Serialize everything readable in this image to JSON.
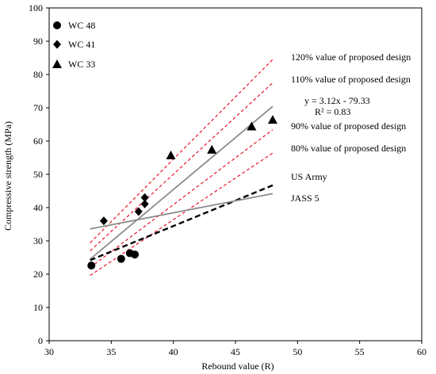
{
  "chart_data": {
    "type": "scatter",
    "title": "",
    "xlabel": "Rebound value (R)",
    "ylabel": "Compressive strength (MPa)",
    "xlim": [
      30,
      60
    ],
    "ylim": [
      0,
      100
    ],
    "xticks": [
      30,
      35,
      40,
      45,
      50,
      55,
      60
    ],
    "yticks": [
      0,
      10,
      20,
      30,
      40,
      50,
      60,
      70,
      80,
      90,
      100
    ],
    "grid": false,
    "legend_position": "top-left",
    "series": [
      {
        "name": "WC 48",
        "marker": "circle",
        "color": "#000000",
        "points": [
          [
            33.4,
            22.6
          ],
          [
            35.8,
            24.6
          ],
          [
            36.5,
            26.3
          ],
          [
            36.9,
            25.9
          ]
        ]
      },
      {
        "name": "WC 41",
        "marker": "diamond",
        "color": "#000000",
        "points": [
          [
            34.4,
            36.0
          ],
          [
            37.2,
            38.8
          ],
          [
            37.7,
            41.1
          ],
          [
            37.7,
            43.0
          ]
        ]
      },
      {
        "name": "WC 33",
        "marker": "triangle",
        "color": "#000000",
        "points": [
          [
            39.8,
            55.7
          ],
          [
            43.1,
            57.4
          ],
          [
            46.3,
            64.4
          ],
          [
            48.0,
            66.4
          ]
        ]
      }
    ],
    "lines": [
      {
        "id": "regression",
        "label": "y = 3.12x - 79.33",
        "label2": "R² = 0.83",
        "color": "#8c8c8c",
        "dash": "solid",
        "width": 1.8,
        "points": [
          [
            33.3,
            24.5
          ],
          [
            48.0,
            70.4
          ]
        ]
      },
      {
        "id": "p120",
        "label": "120% value of proposed design",
        "color": "#e8001c",
        "dash": "dashed",
        "width": 1.1,
        "points": [
          [
            33.3,
            29.4
          ],
          [
            48.0,
            84.5
          ]
        ]
      },
      {
        "id": "p110",
        "label": "110% value of proposed design",
        "color": "#e8001c",
        "dash": "dashed",
        "width": 1.1,
        "points": [
          [
            33.3,
            27.0
          ],
          [
            48.0,
            77.5
          ]
        ]
      },
      {
        "id": "p90",
        "label": "90% value of proposed design",
        "color": "#e8001c",
        "dash": "dashed",
        "width": 1.1,
        "points": [
          [
            33.3,
            22.0
          ],
          [
            48.0,
            63.4
          ]
        ]
      },
      {
        "id": "p80",
        "label": "80% value of proposed design",
        "color": "#e8001c",
        "dash": "dashed",
        "width": 1.1,
        "points": [
          [
            33.3,
            19.6
          ],
          [
            48.0,
            56.4
          ]
        ]
      },
      {
        "id": "usarmy",
        "label": "US Army",
        "color": "#000000",
        "dash": "bold-dashed",
        "width": 2.4,
        "points": [
          [
            33.3,
            24.2
          ],
          [
            48.0,
            46.7
          ]
        ]
      },
      {
        "id": "jass5",
        "label": "JASS 5",
        "color": "#8c8c8c",
        "dash": "solid",
        "width": 1.8,
        "points": [
          [
            33.3,
            33.6
          ],
          [
            48.0,
            44.2
          ]
        ]
      }
    ]
  }
}
